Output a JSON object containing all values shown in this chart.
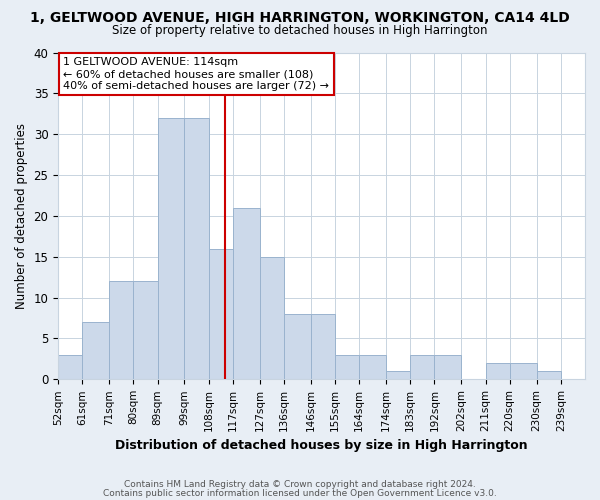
{
  "title": "1, GELTWOOD AVENUE, HIGH HARRINGTON, WORKINGTON, CA14 4LD",
  "subtitle": "Size of property relative to detached houses in High Harrington",
  "xlabel": "Distribution of detached houses by size in High Harrington",
  "ylabel": "Number of detached properties",
  "footer_line1": "Contains HM Land Registry data © Crown copyright and database right 2024.",
  "footer_line2": "Contains public sector information licensed under the Open Government Licence v3.0.",
  "bin_labels": [
    "52sqm",
    "61sqm",
    "71sqm",
    "80sqm",
    "89sqm",
    "99sqm",
    "108sqm",
    "117sqm",
    "127sqm",
    "136sqm",
    "146sqm",
    "155sqm",
    "164sqm",
    "174sqm",
    "183sqm",
    "192sqm",
    "202sqm",
    "211sqm",
    "220sqm",
    "230sqm",
    "239sqm"
  ],
  "bin_edges": [
    52,
    61,
    71,
    80,
    89,
    99,
    108,
    117,
    127,
    136,
    146,
    155,
    164,
    174,
    183,
    192,
    202,
    211,
    220,
    230,
    239
  ],
  "counts": [
    3,
    7,
    12,
    12,
    32,
    32,
    16,
    21,
    15,
    8,
    8,
    3,
    3,
    1,
    3,
    3,
    0,
    2,
    2,
    1,
    0
  ],
  "bar_color": "#ccd9ea",
  "bar_edgecolor": "#9ab3ce",
  "property_value": 114,
  "vline_color": "#cc0000",
  "annotation_title": "1 GELTWOOD AVENUE: 114sqm",
  "annotation_line1": "← 60% of detached houses are smaller (108)",
  "annotation_line2": "40% of semi-detached houses are larger (72) →",
  "annotation_box_edgecolor": "#cc0000",
  "ylim": [
    0,
    40
  ],
  "yticks": [
    0,
    5,
    10,
    15,
    20,
    25,
    30,
    35,
    40
  ],
  "background_color": "#e8eef5",
  "plot_bg_color": "#ffffff",
  "grid_color": "#c8d4e0"
}
